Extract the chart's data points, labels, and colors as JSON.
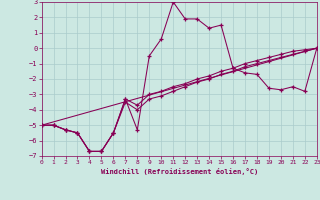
{
  "xlabel": "Windchill (Refroidissement éolien,°C)",
  "background_color": "#cce8e2",
  "grid_color": "#aacccc",
  "line_color": "#880055",
  "xlim": [
    0,
    23
  ],
  "ylim": [
    -7,
    3
  ],
  "xticks": [
    0,
    1,
    2,
    3,
    4,
    5,
    6,
    7,
    8,
    9,
    10,
    11,
    12,
    13,
    14,
    15,
    16,
    17,
    18,
    19,
    20,
    21,
    22,
    23
  ],
  "yticks": [
    -7,
    -6,
    -5,
    -4,
    -3,
    -2,
    -1,
    0,
    1,
    2,
    3
  ],
  "line1_x": [
    0,
    1,
    2,
    3,
    4,
    5,
    6,
    7,
    8,
    9,
    10,
    11,
    12,
    13,
    14,
    15,
    16,
    17,
    18,
    19,
    20,
    21,
    22,
    23
  ],
  "line1_y": [
    -5.0,
    -5.0,
    -5.3,
    -5.5,
    -6.7,
    -6.7,
    -5.5,
    -3.3,
    -5.3,
    -0.5,
    0.6,
    3.0,
    1.9,
    1.9,
    1.3,
    1.5,
    -1.3,
    -1.6,
    -1.7,
    -2.6,
    -2.7,
    -2.5,
    -2.8,
    0.0
  ],
  "line2_x": [
    0,
    1,
    2,
    3,
    4,
    5,
    6,
    7,
    8,
    9,
    10,
    11,
    12,
    13,
    14,
    15,
    16,
    17,
    18,
    19,
    20,
    21,
    22,
    23
  ],
  "line2_y": [
    -5.0,
    -5.0,
    -5.3,
    -5.5,
    -6.7,
    -6.7,
    -5.5,
    -3.3,
    -3.7,
    -3.0,
    -2.8,
    -2.5,
    -2.3,
    -2.0,
    -1.8,
    -1.5,
    -1.3,
    -1.0,
    -0.8,
    -0.6,
    -0.4,
    -0.2,
    -0.1,
    0.0
  ],
  "line3_x": [
    0,
    1,
    2,
    3,
    4,
    5,
    6,
    7,
    8,
    9,
    10,
    11,
    12,
    13,
    14,
    15,
    16,
    17,
    18,
    19,
    20,
    21,
    22,
    23
  ],
  "line3_y": [
    -5.0,
    -5.0,
    -5.3,
    -5.5,
    -6.7,
    -6.7,
    -5.5,
    -3.5,
    -4.0,
    -3.3,
    -3.1,
    -2.8,
    -2.5,
    -2.2,
    -2.0,
    -1.7,
    -1.5,
    -1.2,
    -1.0,
    -0.8,
    -0.6,
    -0.4,
    -0.2,
    0.0
  ],
  "line4_x": [
    0,
    23
  ],
  "line4_y": [
    -5.0,
    0.0
  ]
}
